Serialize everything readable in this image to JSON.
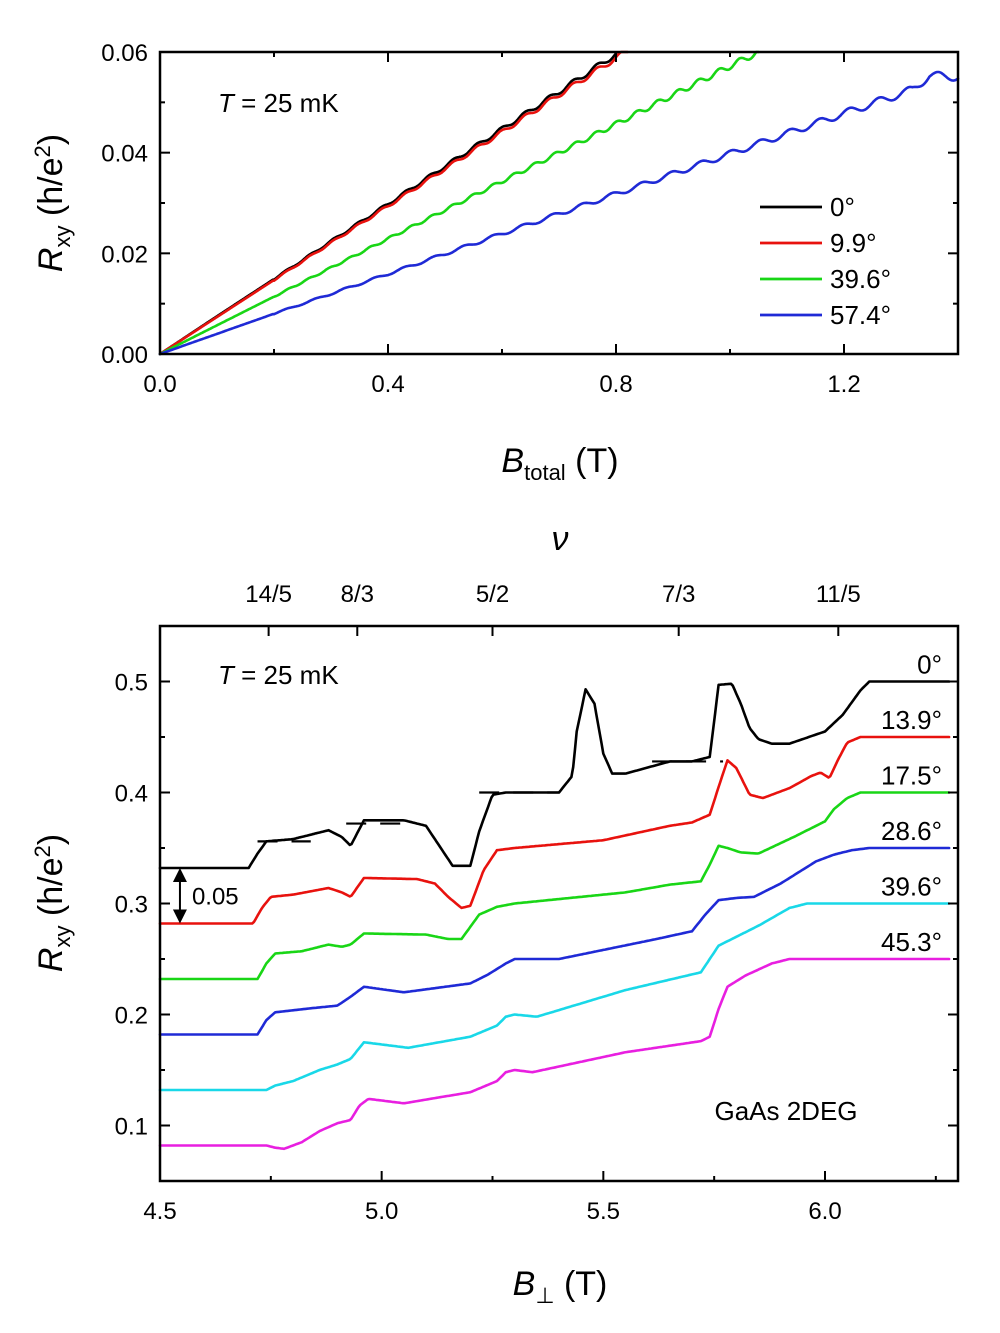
{
  "chart_data": [
    {
      "type": "line",
      "xlabel": "B",
      "xlabel_sub": "total",
      "xlabel_unit": " (T)",
      "ylabel": "R",
      "ylabel_sub": "xy",
      "ylabel_unit": " (h/e",
      "ylabel_sup": "2",
      "ylabel_close": ")",
      "xlim": [
        0.0,
        1.4
      ],
      "ylim": [
        0.0,
        0.06
      ],
      "xticks": [
        0.0,
        0.4,
        0.8,
        1.2
      ],
      "xtick_labels": [
        "0.0",
        "0.4",
        "0.8",
        "1.2"
      ],
      "yticks": [
        0.0,
        0.02,
        0.04,
        0.06
      ],
      "ytick_labels": [
        "0.00",
        "0.02",
        "0.04",
        "0.06"
      ],
      "annotation": {
        "italic": "T",
        "rest": " = 25 mK"
      },
      "legend_placement": "right",
      "series": [
        {
          "name": "0°",
          "color": "#000000",
          "x": [
            0.0,
            0.1,
            0.2,
            0.3,
            0.4,
            0.5,
            0.6,
            0.7,
            0.8
          ],
          "y": [
            0.0,
            0.0075,
            0.0149,
            0.0224,
            0.0298,
            0.0373,
            0.0447,
            0.0521,
            0.0596
          ]
        },
        {
          "name": "9.9°",
          "color": "#e8120e",
          "x": [
            0.0,
            0.1,
            0.2,
            0.3,
            0.4,
            0.5,
            0.6,
            0.7,
            0.8,
            0.82
          ],
          "y": [
            0.0,
            0.00735,
            0.0147,
            0.0221,
            0.0294,
            0.0368,
            0.0441,
            0.0515,
            0.0588,
            0.0603
          ]
        },
        {
          "name": "39.6°",
          "color": "#19d616",
          "x": [
            0.0,
            0.2,
            0.4,
            0.6,
            0.8,
            1.0,
            1.05
          ],
          "y": [
            0.0,
            0.0114,
            0.0229,
            0.0343,
            0.0457,
            0.0572,
            0.06
          ]
        },
        {
          "name": "57.4°",
          "color": "#1f2ad6",
          "x": [
            0.0,
            0.2,
            0.4,
            0.6,
            0.8,
            1.0,
            1.2,
            1.32,
            1.35,
            1.4
          ],
          "y": [
            0.0,
            0.008,
            0.0159,
            0.0239,
            0.0318,
            0.0398,
            0.0478,
            0.0525,
            0.0553,
            0.0551
          ]
        }
      ]
    },
    {
      "type": "line",
      "xlabel": "B",
      "xlabel_sub": "⊥",
      "xlabel_unit": " (T)",
      "ylabel": "R",
      "ylabel_sub": "xy",
      "ylabel_unit": " (h/e",
      "ylabel_sup": "2",
      "ylabel_close": ")",
      "top_axis_label": "ν",
      "top_ticks": [
        {
          "x": 4.745,
          "label": "14/5"
        },
        {
          "x": 4.945,
          "label": "8/3"
        },
        {
          "x": 5.25,
          "label": "5/2"
        },
        {
          "x": 5.67,
          "label": "7/3"
        },
        {
          "x": 6.03,
          "label": "11/5"
        }
      ],
      "xlim": [
        4.5,
        6.3
      ],
      "ylim": [
        0.05,
        0.55
      ],
      "xticks": [
        4.5,
        5.0,
        5.5,
        6.0
      ],
      "xtick_labels": [
        "4.5",
        "5.0",
        "5.5",
        "6.0"
      ],
      "yticks": [
        0.1,
        0.2,
        0.3,
        0.4,
        0.5
      ],
      "ytick_labels": [
        "0.1",
        "0.2",
        "0.3",
        "0.4",
        "0.5"
      ],
      "annotation": {
        "italic": "T",
        "rest": " = 25 mK"
      },
      "sample_label": "GaAs 2DEG",
      "offset_label": "0.05",
      "offset_arrow": {
        "x": 4.545,
        "y_from": 0.332,
        "y_to": 0.282
      },
      "plateau_marks": [
        {
          "x0": 4.72,
          "x1": 4.84,
          "y": 0.356
        },
        {
          "x0": 4.92,
          "x1": 5.06,
          "y": 0.372
        },
        {
          "x0": 5.22,
          "x1": 5.4,
          "y": 0.4
        },
        {
          "x0": 5.61,
          "x1": 5.77,
          "y": 0.428
        }
      ],
      "series": [
        {
          "name": "0°",
          "color": "#000000",
          "x": [
            4.5,
            4.7,
            4.72,
            4.74,
            4.8,
            4.88,
            4.91,
            4.93,
            4.96,
            5.05,
            5.1,
            5.13,
            5.16,
            5.2,
            5.22,
            5.25,
            5.28,
            5.4,
            5.43,
            5.44,
            5.46,
            5.48,
            5.5,
            5.52,
            5.55,
            5.65,
            5.7,
            5.74,
            5.76,
            5.79,
            5.81,
            5.83,
            5.85,
            5.88,
            5.92,
            6.0,
            6.04,
            6.08,
            6.1,
            6.28
          ],
          "y": [
            0.332,
            0.332,
            0.345,
            0.356,
            0.358,
            0.366,
            0.36,
            0.352,
            0.375,
            0.375,
            0.37,
            0.352,
            0.334,
            0.334,
            0.365,
            0.398,
            0.4,
            0.4,
            0.415,
            0.455,
            0.493,
            0.48,
            0.435,
            0.417,
            0.417,
            0.428,
            0.428,
            0.432,
            0.497,
            0.498,
            0.48,
            0.458,
            0.448,
            0.444,
            0.444,
            0.455,
            0.47,
            0.492,
            0.5,
            0.5
          ]
        },
        {
          "name": "13.9°",
          "color": "#e8120e",
          "x": [
            4.5,
            4.71,
            4.73,
            4.75,
            4.8,
            4.88,
            4.91,
            4.93,
            4.96,
            5.08,
            5.12,
            5.15,
            5.18,
            5.2,
            5.23,
            5.26,
            5.3,
            5.5,
            5.65,
            5.7,
            5.74,
            5.76,
            5.78,
            5.8,
            5.83,
            5.86,
            5.92,
            5.97,
            5.99,
            6.01,
            6.03,
            6.05,
            6.08,
            6.28
          ],
          "y": [
            0.282,
            0.282,
            0.296,
            0.306,
            0.308,
            0.314,
            0.31,
            0.306,
            0.323,
            0.322,
            0.318,
            0.306,
            0.296,
            0.298,
            0.33,
            0.348,
            0.35,
            0.357,
            0.37,
            0.373,
            0.38,
            0.405,
            0.429,
            0.422,
            0.398,
            0.395,
            0.404,
            0.415,
            0.418,
            0.413,
            0.43,
            0.445,
            0.45,
            0.45
          ]
        },
        {
          "name": "17.5°",
          "color": "#19d616",
          "x": [
            4.5,
            4.72,
            4.74,
            4.76,
            4.82,
            4.88,
            4.91,
            4.93,
            4.96,
            5.1,
            5.15,
            5.18,
            5.22,
            5.26,
            5.3,
            5.55,
            5.65,
            5.72,
            5.74,
            5.76,
            5.78,
            5.81,
            5.85,
            5.93,
            5.98,
            6.0,
            6.02,
            6.05,
            6.08,
            6.28
          ],
          "y": [
            0.232,
            0.232,
            0.246,
            0.255,
            0.257,
            0.263,
            0.261,
            0.263,
            0.273,
            0.272,
            0.268,
            0.268,
            0.29,
            0.297,
            0.3,
            0.31,
            0.317,
            0.32,
            0.335,
            0.352,
            0.35,
            0.346,
            0.345,
            0.36,
            0.37,
            0.374,
            0.385,
            0.395,
            0.4,
            0.4
          ]
        },
        {
          "name": "28.6°",
          "color": "#1f2ad6",
          "x": [
            4.5,
            4.72,
            4.74,
            4.76,
            4.85,
            4.9,
            4.93,
            4.96,
            5.05,
            5.2,
            5.24,
            5.28,
            5.3,
            5.4,
            5.62,
            5.7,
            5.73,
            5.76,
            5.8,
            5.84,
            5.9,
            5.98,
            6.02,
            6.06,
            6.1,
            6.28
          ],
          "y": [
            0.182,
            0.182,
            0.195,
            0.202,
            0.206,
            0.208,
            0.216,
            0.225,
            0.22,
            0.228,
            0.236,
            0.246,
            0.25,
            0.25,
            0.268,
            0.275,
            0.29,
            0.303,
            0.305,
            0.306,
            0.318,
            0.338,
            0.344,
            0.348,
            0.35,
            0.35
          ]
        },
        {
          "name": "39.6°",
          "color": "#19d8e8",
          "x": [
            4.5,
            4.74,
            4.76,
            4.8,
            4.86,
            4.9,
            4.93,
            4.96,
            5.06,
            5.2,
            5.26,
            5.28,
            5.3,
            5.35,
            5.55,
            5.72,
            5.74,
            5.76,
            5.8,
            5.85,
            5.92,
            5.96,
            6.28
          ],
          "y": [
            0.132,
            0.132,
            0.136,
            0.14,
            0.15,
            0.155,
            0.16,
            0.175,
            0.17,
            0.18,
            0.19,
            0.198,
            0.2,
            0.198,
            0.222,
            0.238,
            0.25,
            0.262,
            0.27,
            0.28,
            0.296,
            0.3,
            0.3
          ]
        },
        {
          "name": "45.3°",
          "color": "#e81fe0",
          "x": [
            4.5,
            4.74,
            4.76,
            4.78,
            4.82,
            4.86,
            4.9,
            4.93,
            4.95,
            4.97,
            5.05,
            5.2,
            5.26,
            5.28,
            5.3,
            5.34,
            5.55,
            5.72,
            5.74,
            5.76,
            5.78,
            5.82,
            5.88,
            5.92,
            6.28
          ],
          "y": [
            0.082,
            0.082,
            0.08,
            0.079,
            0.085,
            0.095,
            0.102,
            0.105,
            0.118,
            0.124,
            0.12,
            0.13,
            0.14,
            0.148,
            0.15,
            0.148,
            0.166,
            0.176,
            0.18,
            0.205,
            0.225,
            0.235,
            0.246,
            0.25,
            0.25
          ]
        }
      ]
    }
  ]
}
